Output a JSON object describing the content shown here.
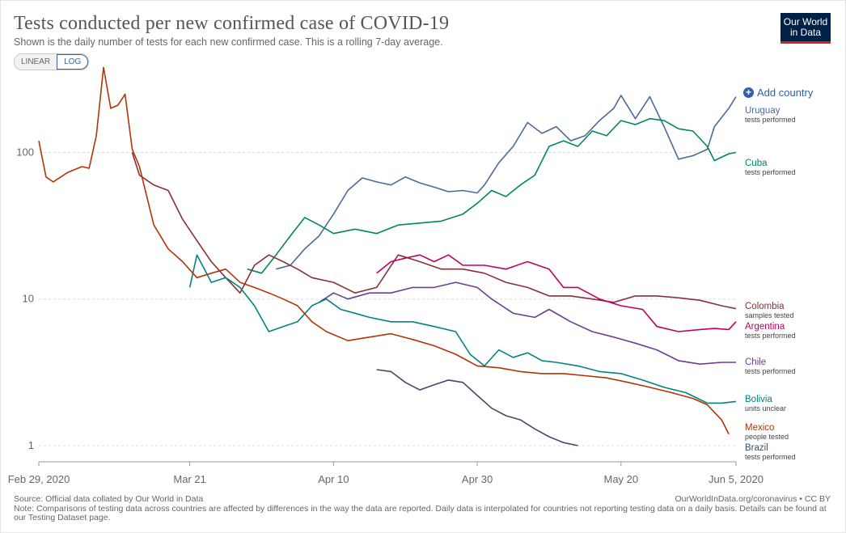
{
  "header": {
    "title": "Tests conducted per new confirmed case of COVID-19",
    "subtitle": "Shown is the daily number of tests for each new confirmed case. This is a rolling 7-day average.",
    "logo_line1": "Our World",
    "logo_line2": "in Data"
  },
  "controls": {
    "linear_label": "LINEAR",
    "log_label": "LOG",
    "add_country_label": "Add country"
  },
  "footer": {
    "source": "Source: Official data collated by Our World in Data",
    "credit": "OurWorldInData.org/coronavirus • CC BY",
    "note": "Note: Comparisons of testing data across countries are affected by differences in the way the data are reported. Daily data is interpolated for countries not reporting testing data on a daily basis. Details can be found at our Testing Dataset page."
  },
  "colors": {
    "grid": "#dddddd",
    "axis_text": "#666666"
  },
  "chart_data": {
    "type": "line",
    "y_scale": "log",
    "ylim": [
      1,
      300
    ],
    "y_ticks": [
      {
        "value": 1,
        "label": "1"
      },
      {
        "value": 10,
        "label": "10"
      },
      {
        "value": 100,
        "label": "100"
      }
    ],
    "xlim": [
      "2020-02-29",
      "2020-06-05"
    ],
    "x_ticks": [
      {
        "date": "2020-02-29",
        "label": "Feb 29, 2020"
      },
      {
        "date": "2020-03-21",
        "label": "Mar 21"
      },
      {
        "date": "2020-04-10",
        "label": "Apr 10"
      },
      {
        "date": "2020-04-30",
        "label": "Apr 30"
      },
      {
        "date": "2020-05-20",
        "label": "May 20"
      },
      {
        "date": "2020-06-05",
        "label": "Jun 5, 2020"
      }
    ],
    "grid": true,
    "legend": "right-end labels",
    "series": [
      {
        "name": "Uruguay",
        "note": "tests performed",
        "color": "#4c6a9c",
        "points": [
          [
            "2020-04-02",
            16
          ],
          [
            "2020-04-04",
            17
          ],
          [
            "2020-04-06",
            22
          ],
          [
            "2020-04-08",
            27
          ],
          [
            "2020-04-10",
            38
          ],
          [
            "2020-04-12",
            55
          ],
          [
            "2020-04-14",
            67
          ],
          [
            "2020-04-16",
            63
          ],
          [
            "2020-04-18",
            60
          ],
          [
            "2020-04-20",
            68
          ],
          [
            "2020-04-22",
            62
          ],
          [
            "2020-04-24",
            58
          ],
          [
            "2020-04-26",
            54
          ],
          [
            "2020-04-28",
            55
          ],
          [
            "2020-04-30",
            53
          ],
          [
            "2020-05-01",
            60
          ],
          [
            "2020-05-03",
            85
          ],
          [
            "2020-05-05",
            110
          ],
          [
            "2020-05-07",
            160
          ],
          [
            "2020-05-09",
            135
          ],
          [
            "2020-05-11",
            150
          ],
          [
            "2020-05-13",
            120
          ],
          [
            "2020-05-15",
            130
          ],
          [
            "2020-05-17",
            165
          ],
          [
            "2020-05-19",
            200
          ],
          [
            "2020-05-20",
            245
          ],
          [
            "2020-05-22",
            170
          ],
          [
            "2020-05-24",
            240
          ],
          [
            "2020-05-26",
            150
          ],
          [
            "2020-05-28",
            90
          ],
          [
            "2020-05-30",
            95
          ],
          [
            "2020-06-01",
            105
          ],
          [
            "2020-06-02",
            150
          ],
          [
            "2020-06-04",
            200
          ],
          [
            "2020-06-05",
            240
          ]
        ]
      },
      {
        "name": "Cuba",
        "note": "tests performed",
        "color": "#00875e",
        "points": [
          [
            "2020-03-29",
            16
          ],
          [
            "2020-03-31",
            15
          ],
          [
            "2020-04-02",
            20
          ],
          [
            "2020-04-04",
            27
          ],
          [
            "2020-04-06",
            36
          ],
          [
            "2020-04-08",
            32
          ],
          [
            "2020-04-10",
            28
          ],
          [
            "2020-04-13",
            30
          ],
          [
            "2020-04-16",
            28
          ],
          [
            "2020-04-19",
            32
          ],
          [
            "2020-04-22",
            33
          ],
          [
            "2020-04-25",
            34
          ],
          [
            "2020-04-28",
            38
          ],
          [
            "2020-04-30",
            45
          ],
          [
            "2020-05-02",
            55
          ],
          [
            "2020-05-04",
            50
          ],
          [
            "2020-05-06",
            60
          ],
          [
            "2020-05-08",
            70
          ],
          [
            "2020-05-10",
            110
          ],
          [
            "2020-05-12",
            120
          ],
          [
            "2020-05-14",
            110
          ],
          [
            "2020-05-16",
            140
          ],
          [
            "2020-05-18",
            130
          ],
          [
            "2020-05-20",
            165
          ],
          [
            "2020-05-22",
            155
          ],
          [
            "2020-05-24",
            170
          ],
          [
            "2020-05-26",
            165
          ],
          [
            "2020-05-28",
            145
          ],
          [
            "2020-05-30",
            140
          ],
          [
            "2020-06-01",
            110
          ],
          [
            "2020-06-02",
            88
          ],
          [
            "2020-06-04",
            98
          ],
          [
            "2020-06-05",
            100
          ]
        ]
      },
      {
        "name": "Colombia",
        "note": "samples tested",
        "color": "#883039",
        "points": [
          [
            "2020-03-13",
            100
          ],
          [
            "2020-03-14",
            70
          ],
          [
            "2020-03-16",
            60
          ],
          [
            "2020-03-18",
            55
          ],
          [
            "2020-03-20",
            35
          ],
          [
            "2020-03-22",
            25
          ],
          [
            "2020-03-24",
            18
          ],
          [
            "2020-03-26",
            14
          ],
          [
            "2020-03-28",
            11
          ],
          [
            "2020-03-30",
            17
          ],
          [
            "2020-04-01",
            20
          ],
          [
            "2020-04-03",
            18
          ],
          [
            "2020-04-05",
            16
          ],
          [
            "2020-04-07",
            14
          ],
          [
            "2020-04-10",
            13
          ],
          [
            "2020-04-13",
            11
          ],
          [
            "2020-04-16",
            12
          ],
          [
            "2020-04-19",
            20
          ],
          [
            "2020-04-22",
            18
          ],
          [
            "2020-04-25",
            16
          ],
          [
            "2020-04-28",
            16
          ],
          [
            "2020-05-01",
            15
          ],
          [
            "2020-05-04",
            13
          ],
          [
            "2020-05-07",
            12
          ],
          [
            "2020-05-10",
            10.5
          ],
          [
            "2020-05-13",
            10.5
          ],
          [
            "2020-05-16",
            10
          ],
          [
            "2020-05-19",
            9.5
          ],
          [
            "2020-05-22",
            10.5
          ],
          [
            "2020-05-25",
            10.5
          ],
          [
            "2020-05-28",
            10.2
          ],
          [
            "2020-05-31",
            9.8
          ],
          [
            "2020-06-03",
            9
          ],
          [
            "2020-06-05",
            8.6
          ]
        ]
      },
      {
        "name": "Argentina",
        "note": "tests performed",
        "color": "#c1005d",
        "points": [
          [
            "2020-04-16",
            15
          ],
          [
            "2020-04-18",
            18
          ],
          [
            "2020-04-20",
            19
          ],
          [
            "2020-04-22",
            20
          ],
          [
            "2020-04-24",
            18
          ],
          [
            "2020-04-26",
            20
          ],
          [
            "2020-04-28",
            17
          ],
          [
            "2020-05-01",
            17
          ],
          [
            "2020-05-04",
            16
          ],
          [
            "2020-05-07",
            18
          ],
          [
            "2020-05-10",
            16
          ],
          [
            "2020-05-12",
            12
          ],
          [
            "2020-05-14",
            12
          ],
          [
            "2020-05-17",
            10
          ],
          [
            "2020-05-20",
            9
          ],
          [
            "2020-05-23",
            8.5
          ],
          [
            "2020-05-25",
            6.5
          ],
          [
            "2020-05-28",
            6
          ],
          [
            "2020-05-31",
            6.2
          ],
          [
            "2020-06-02",
            6.3
          ],
          [
            "2020-06-04",
            6.2
          ],
          [
            "2020-06-05",
            7
          ]
        ]
      },
      {
        "name": "Chile",
        "note": "tests performed",
        "color": "#6d3e91",
        "points": [
          [
            "2020-04-08",
            9.5
          ],
          [
            "2020-04-10",
            11
          ],
          [
            "2020-04-12",
            10
          ],
          [
            "2020-04-15",
            11
          ],
          [
            "2020-04-18",
            11
          ],
          [
            "2020-04-21",
            12
          ],
          [
            "2020-04-24",
            12
          ],
          [
            "2020-04-27",
            13
          ],
          [
            "2020-04-30",
            12
          ],
          [
            "2020-05-02",
            10
          ],
          [
            "2020-05-05",
            8
          ],
          [
            "2020-05-08",
            7.5
          ],
          [
            "2020-05-10",
            8.5
          ],
          [
            "2020-05-13",
            7
          ],
          [
            "2020-05-16",
            6
          ],
          [
            "2020-05-19",
            5.5
          ],
          [
            "2020-05-22",
            5
          ],
          [
            "2020-05-25",
            4.5
          ],
          [
            "2020-05-28",
            3.8
          ],
          [
            "2020-05-31",
            3.6
          ],
          [
            "2020-06-03",
            3.7
          ],
          [
            "2020-06-05",
            3.7
          ]
        ]
      },
      {
        "name": "Bolivia",
        "note": "units unclear",
        "color": "#00847e",
        "points": [
          [
            "2020-03-21",
            12
          ],
          [
            "2020-03-22",
            20
          ],
          [
            "2020-03-24",
            13
          ],
          [
            "2020-03-26",
            14
          ],
          [
            "2020-03-28",
            12
          ],
          [
            "2020-03-30",
            9
          ],
          [
            "2020-04-01",
            6
          ],
          [
            "2020-04-03",
            6.5
          ],
          [
            "2020-04-05",
            7
          ],
          [
            "2020-04-07",
            9
          ],
          [
            "2020-04-09",
            10
          ],
          [
            "2020-04-11",
            8.5
          ],
          [
            "2020-04-13",
            8
          ],
          [
            "2020-04-15",
            7.5
          ],
          [
            "2020-04-18",
            7
          ],
          [
            "2020-04-21",
            7
          ],
          [
            "2020-04-24",
            6.5
          ],
          [
            "2020-04-27",
            6
          ],
          [
            "2020-04-29",
            4.2
          ],
          [
            "2020-05-01",
            3.5
          ],
          [
            "2020-05-03",
            4.5
          ],
          [
            "2020-05-05",
            4
          ],
          [
            "2020-05-07",
            4.3
          ],
          [
            "2020-05-09",
            3.8
          ],
          [
            "2020-05-11",
            3.7
          ],
          [
            "2020-05-14",
            3.5
          ],
          [
            "2020-05-17",
            3.2
          ],
          [
            "2020-05-20",
            3.1
          ],
          [
            "2020-05-23",
            2.8
          ],
          [
            "2020-05-26",
            2.5
          ],
          [
            "2020-05-29",
            2.3
          ],
          [
            "2020-06-01",
            1.95
          ],
          [
            "2020-06-03",
            1.95
          ],
          [
            "2020-06-05",
            2
          ]
        ]
      },
      {
        "name": "Mexico",
        "note": "people tested",
        "color": "#b13507",
        "points": [
          [
            "2020-02-29",
            120
          ],
          [
            "2020-03-01",
            68
          ],
          [
            "2020-03-02",
            63
          ],
          [
            "2020-03-04",
            73
          ],
          [
            "2020-03-06",
            80
          ],
          [
            "2020-03-07",
            78
          ],
          [
            "2020-03-08",
            130
          ],
          [
            "2020-03-09",
            380
          ],
          [
            "2020-03-10",
            200
          ],
          [
            "2020-03-11",
            210
          ],
          [
            "2020-03-12",
            250
          ],
          [
            "2020-03-13",
            105
          ],
          [
            "2020-03-14",
            80
          ],
          [
            "2020-03-16",
            32
          ],
          [
            "2020-03-18",
            22
          ],
          [
            "2020-03-20",
            18
          ],
          [
            "2020-03-22",
            14
          ],
          [
            "2020-03-24",
            15
          ],
          [
            "2020-03-26",
            16
          ],
          [
            "2020-03-28",
            13
          ],
          [
            "2020-03-30",
            12
          ],
          [
            "2020-04-01",
            11
          ],
          [
            "2020-04-03",
            10
          ],
          [
            "2020-04-05",
            9
          ],
          [
            "2020-04-07",
            7
          ],
          [
            "2020-04-09",
            6
          ],
          [
            "2020-04-12",
            5.2
          ],
          [
            "2020-04-15",
            5.5
          ],
          [
            "2020-04-18",
            5.8
          ],
          [
            "2020-04-21",
            5.3
          ],
          [
            "2020-04-24",
            4.8
          ],
          [
            "2020-04-27",
            4.2
          ],
          [
            "2020-04-30",
            3.5
          ],
          [
            "2020-05-03",
            3.4
          ],
          [
            "2020-05-06",
            3.2
          ],
          [
            "2020-05-09",
            3.1
          ],
          [
            "2020-05-12",
            3.1
          ],
          [
            "2020-05-15",
            3
          ],
          [
            "2020-05-18",
            2.9
          ],
          [
            "2020-05-21",
            2.7
          ],
          [
            "2020-05-24",
            2.5
          ],
          [
            "2020-05-27",
            2.3
          ],
          [
            "2020-05-30",
            2.1
          ],
          [
            "2020-06-01",
            1.9
          ],
          [
            "2020-06-03",
            1.5
          ],
          [
            "2020-06-04",
            1.2
          ]
        ]
      },
      {
        "name": "Brazil",
        "note": "tests performed",
        "color": "#3c4e66",
        "points": [
          [
            "2020-04-16",
            3.3
          ],
          [
            "2020-04-18",
            3.2
          ],
          [
            "2020-04-20",
            2.7
          ],
          [
            "2020-04-22",
            2.4
          ],
          [
            "2020-04-24",
            2.6
          ],
          [
            "2020-04-26",
            2.8
          ],
          [
            "2020-04-28",
            2.7
          ],
          [
            "2020-04-30",
            2.2
          ],
          [
            "2020-05-02",
            1.8
          ],
          [
            "2020-05-04",
            1.6
          ],
          [
            "2020-05-06",
            1.5
          ],
          [
            "2020-05-08",
            1.3
          ],
          [
            "2020-05-10",
            1.15
          ],
          [
            "2020-05-12",
            1.05
          ],
          [
            "2020-05-14",
            1.0
          ]
        ]
      }
    ]
  }
}
